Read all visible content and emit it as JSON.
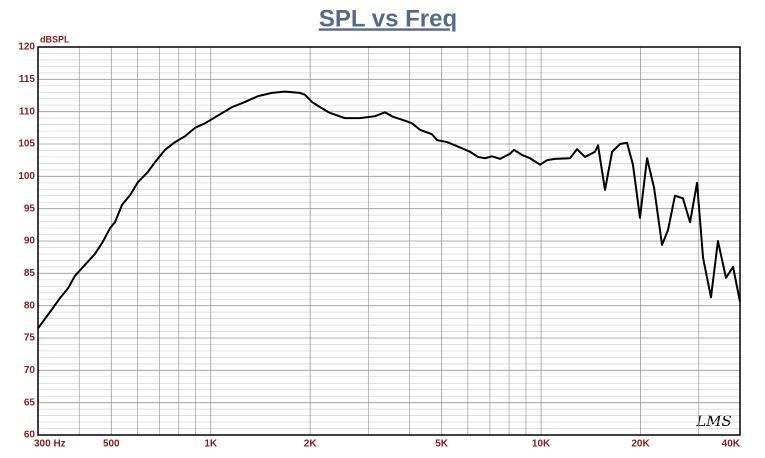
{
  "chart_data": {
    "type": "line",
    "title": "SPL vs Freq",
    "ylabel": "dBSPL",
    "annotation": "LMS",
    "xscale": "log",
    "grid": true,
    "xlim": [
      300,
      40000
    ],
    "ylim": [
      60,
      120
    ],
    "xticks": [
      {
        "value": 300,
        "label": "300  Hz"
      },
      {
        "value": 500,
        "label": "500"
      },
      {
        "value": 1000,
        "label": "1K"
      },
      {
        "value": 2000,
        "label": "2K"
      },
      {
        "value": 5000,
        "label": "5K"
      },
      {
        "value": 10000,
        "label": "10K"
      },
      {
        "value": 20000,
        "label": "20K"
      },
      {
        "value": 40000,
        "label": "40K"
      }
    ],
    "xminor": [
      400,
      600,
      700,
      800,
      900,
      3000,
      4000,
      6000,
      7000,
      8000,
      9000,
      30000
    ],
    "yticks": [
      60,
      65,
      70,
      75,
      80,
      85,
      90,
      95,
      100,
      105,
      110,
      115,
      120
    ],
    "yminor": [
      61,
      62,
      63,
      64,
      66,
      67,
      68,
      69,
      71,
      72,
      73,
      74,
      76,
      77,
      78,
      79,
      81,
      82,
      83,
      84,
      86,
      87,
      88,
      89,
      91,
      92,
      93,
      94,
      96,
      97,
      98,
      99,
      101,
      102,
      103,
      104,
      106,
      107,
      108,
      109,
      111,
      112,
      113,
      114,
      116,
      117,
      118,
      119
    ],
    "x": [
      300,
      326,
      350,
      370,
      388,
      416,
      446,
      469,
      496,
      513,
      539,
      570,
      602,
      646,
      678,
      727,
      780,
      836,
      896,
      961,
      1067,
      1160,
      1270,
      1390,
      1532,
      1679,
      1863,
      1929,
      2025,
      2142,
      2296,
      2548,
      2830,
      3143,
      3368,
      3564,
      3874,
      4066,
      4300,
      4677,
      4842,
      5190,
      5486,
      6095,
      6444,
      6766,
      7103,
      7516,
      8054,
      8281,
      8757,
      9254,
      9929,
      10425,
      11020,
      12230,
      12850,
      13580,
      14560,
      14870,
      15610,
      16400,
      17340,
      18200,
      18970,
      19920,
      20930,
      21980,
      23230,
      24220,
      25420,
      26870,
      28240,
      29650,
      30920,
      32680,
      34300,
      36280,
      38110,
      40000
    ],
    "series": [
      {
        "color": "#000000",
        "values": [
          76.5,
          79.0,
          81.2,
          82.7,
          84.6,
          86.3,
          88.0,
          89.7,
          92.0,
          92.9,
          95.6,
          97.1,
          99.1,
          100.7,
          102.2,
          104.1,
          105.3,
          106.2,
          107.5,
          108.2,
          109.6,
          110.7,
          111.5,
          112.4,
          112.9,
          113.1,
          112.9,
          112.6,
          111.5,
          110.7,
          109.8,
          109.0,
          109.0,
          109.3,
          109.9,
          109.2,
          108.6,
          108.2,
          107.2,
          106.5,
          105.6,
          105.3,
          104.8,
          103.8,
          103.0,
          102.8,
          103.1,
          102.7,
          103.5,
          104.1,
          103.3,
          102.8,
          101.8,
          102.5,
          102.7,
          102.8,
          104.2,
          103.0,
          103.8,
          104.8,
          97.9,
          103.8,
          105.0,
          105.2,
          101.8,
          93.6,
          102.8,
          98.2,
          89.4,
          91.7,
          97.0,
          96.6,
          92.9,
          99.0,
          87.4,
          81.3,
          90.0,
          84.3,
          86.0,
          80.6
        ]
      }
    ]
  }
}
